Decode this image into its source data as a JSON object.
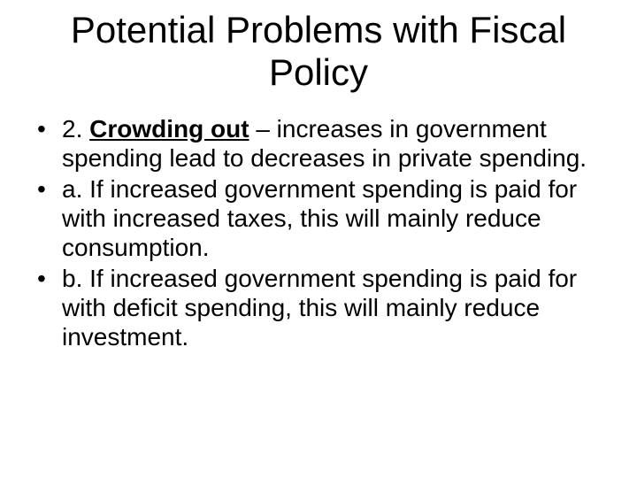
{
  "title_fontsize": 42,
  "body_fontsize": 28,
  "text_color": "#000000",
  "background_color": "#ffffff",
  "title": "Potential Problems with Fiscal Policy",
  "bullets": [
    {
      "lead": "2. ",
      "term": "Crowding out",
      "rest": " – increases in government spending lead to decreases in private spending."
    },
    {
      "lead": "",
      "term": "",
      "rest": "a. If increased government spending is paid for with increased taxes, this will mainly reduce consumption."
    },
    {
      "lead": "",
      "term": "",
      "rest": "b. If increased government spending is paid for with deficit spending, this will mainly reduce investment."
    }
  ]
}
